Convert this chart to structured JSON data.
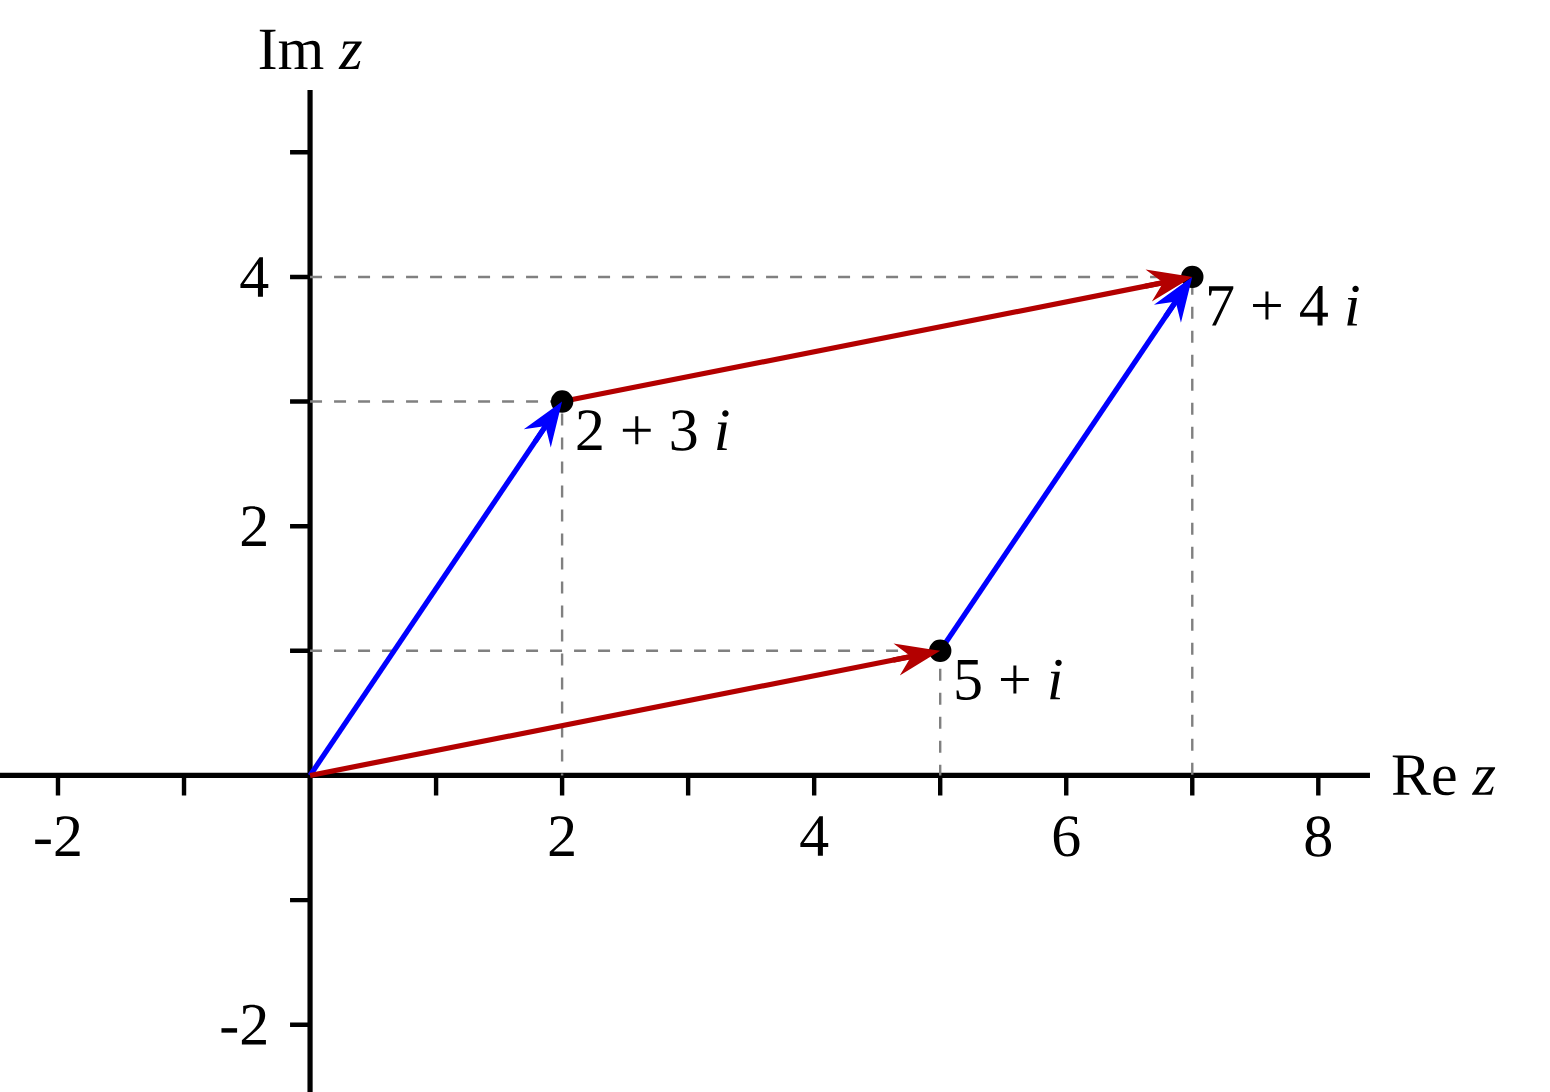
{
  "chart_data": {
    "type": "line",
    "xlabel": "Re *z*",
    "ylabel": "Im *z*",
    "xlim": [
      -2.46,
      8.41
    ],
    "ylim": [
      -2.54,
      5.5
    ],
    "xticks": [
      -2,
      {
        "value": -1,
        "label": null
      },
      {
        "value": 1,
        "label": null
      },
      2,
      {
        "value": 3,
        "label": null
      },
      4,
      {
        "value": 5,
        "label": null
      },
      6,
      {
        "value": 7,
        "label": null
      },
      8
    ],
    "yticks": [
      -2,
      {
        "value": -1,
        "label": null
      },
      {
        "value": 1,
        "label": null
      },
      2,
      {
        "value": 3,
        "label": null
      },
      4,
      {
        "value": 5,
        "label": null
      }
    ],
    "series": [
      {
        "line_style": "dashed",
        "color": "#808080",
        "x": [
          0,
          7,
          7,
          null,
          0,
          2,
          2,
          null,
          0,
          5,
          5
        ],
        "values": [
          4,
          4,
          0,
          null,
          3,
          3,
          0,
          null,
          1,
          1,
          0
        ]
      },
      {
        "line_style": "solid",
        "color": "#0000ff",
        "x": [
          0,
          2
        ],
        "values": [
          0,
          3
        ]
      },
      {
        "line_style": "solid",
        "color": "#0000ff",
        "x": [
          5,
          7
        ],
        "values": [
          1,
          4
        ]
      },
      {
        "line_style": "solid",
        "color": "#b30000",
        "x": [
          0,
          5
        ],
        "values": [
          0,
          1
        ]
      },
      {
        "line_style": "solid",
        "color": "#b30000",
        "x": [
          2,
          7
        ],
        "values": [
          3,
          4
        ]
      },
      {
        "type": "scatter",
        "color": "#000000",
        "x": [
          2,
          5,
          7
        ],
        "values": [
          3,
          1,
          4
        ]
      }
    ],
    "annotations": [
      {
        "text": "2 + 3 *i*",
        "x": 2,
        "y": 3
      },
      {
        "text": "5 + *i*",
        "x": 5,
        "y": 1
      },
      {
        "text": "7 + 4 *i*",
        "x": 7,
        "y": 4
      }
    ]
  }
}
